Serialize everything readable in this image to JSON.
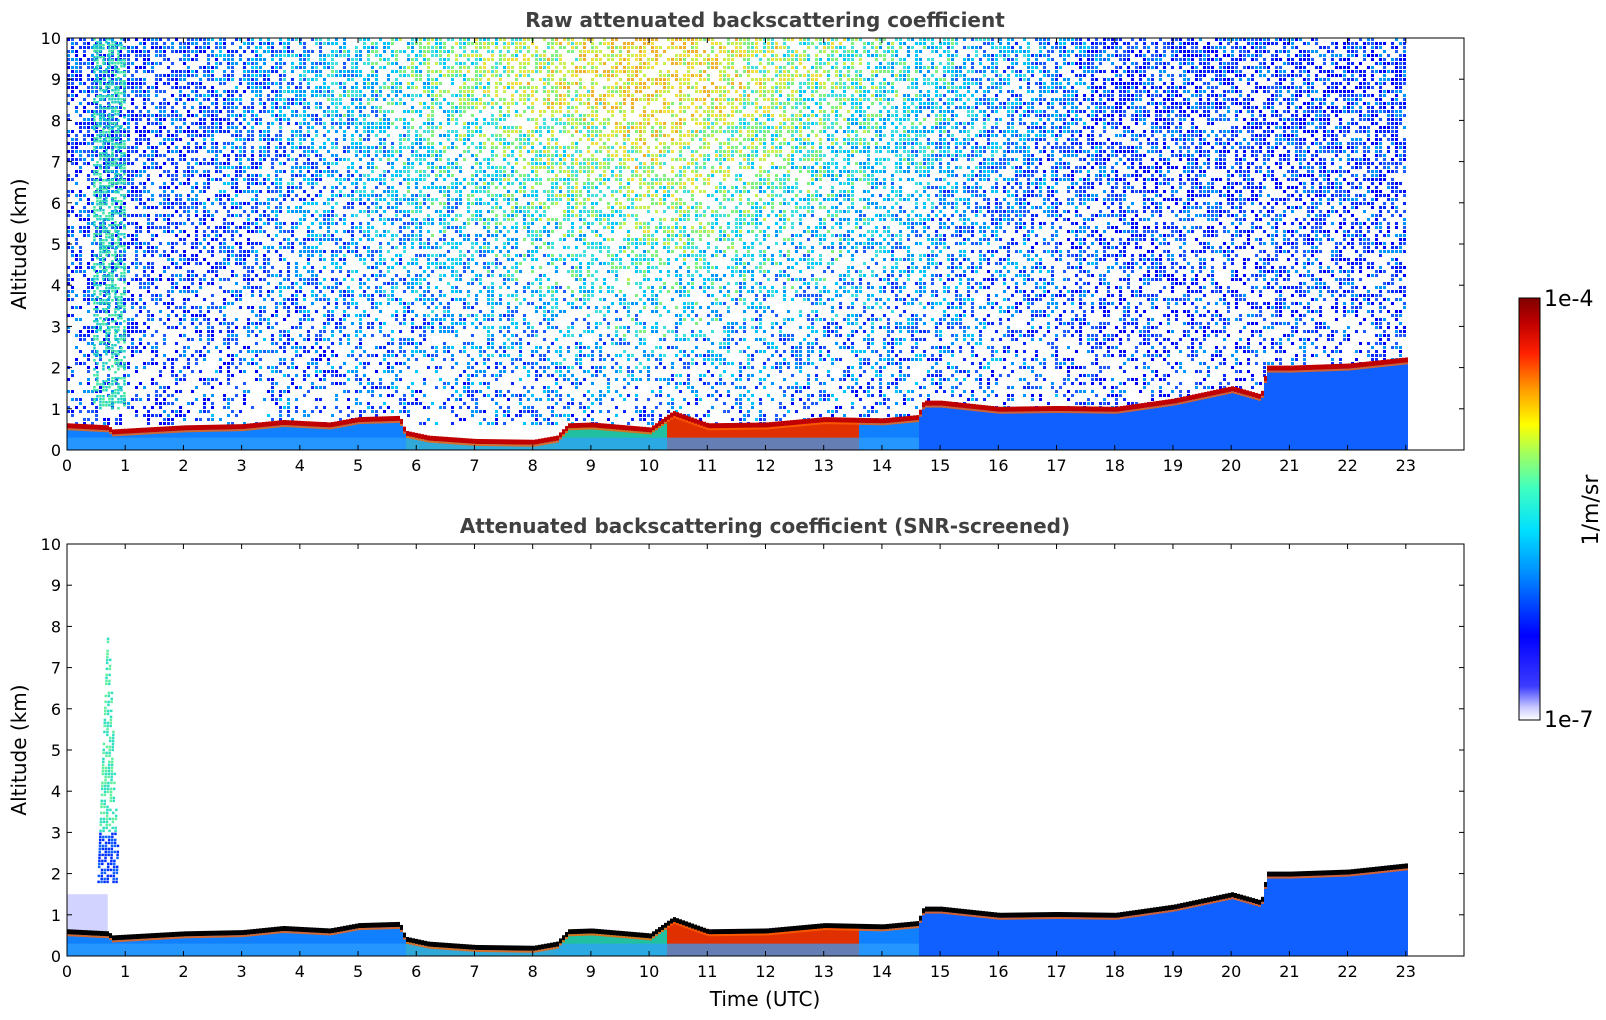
{
  "chart_data": [
    {
      "type": "heatmap",
      "title": "Raw attenuated backscattering coefficient",
      "xlabel": "",
      "ylabel": "Altitude (km)",
      "xlim": [
        0,
        24
      ],
      "ylim": [
        0,
        10
      ],
      "x_ticks": [
        0,
        1,
        2,
        3,
        4,
        5,
        6,
        7,
        8,
        9,
        10,
        11,
        12,
        13,
        14,
        15,
        16,
        17,
        18,
        19,
        20,
        21,
        22,
        23
      ],
      "y_ticks": [
        0,
        1,
        2,
        3,
        4,
        5,
        6,
        7,
        8,
        9,
        10
      ],
      "data_end_hour": 23,
      "layer_top_km": [
        [
          0,
          0.6
        ],
        [
          0.7,
          0.55
        ],
        [
          0.75,
          0.45
        ],
        [
          2,
          0.55
        ],
        [
          3,
          0.58
        ],
        [
          3.7,
          0.68
        ],
        [
          4.5,
          0.62
        ],
        [
          5,
          0.75
        ],
        [
          5.7,
          0.78
        ],
        [
          5.8,
          0.42
        ],
        [
          6.2,
          0.3
        ],
        [
          7,
          0.22
        ],
        [
          8,
          0.2
        ],
        [
          8.4,
          0.3
        ],
        [
          8.6,
          0.6
        ],
        [
          9,
          0.62
        ],
        [
          10,
          0.5
        ],
        [
          10.4,
          0.9
        ],
        [
          11,
          0.6
        ],
        [
          12,
          0.62
        ],
        [
          13,
          0.75
        ],
        [
          14,
          0.72
        ],
        [
          14.6,
          0.8
        ],
        [
          14.7,
          1.15
        ],
        [
          15,
          1.15
        ],
        [
          16,
          1.0
        ],
        [
          17,
          1.02
        ],
        [
          18,
          1.0
        ],
        [
          19,
          1.2
        ],
        [
          20,
          1.5
        ],
        [
          20.5,
          1.3
        ],
        [
          20.6,
          2.0
        ],
        [
          21,
          2.0
        ],
        [
          22,
          2.05
        ],
        [
          23,
          2.2
        ]
      ],
      "noise_level": "high"
    },
    {
      "type": "heatmap",
      "title": "Attenuated backscattering coefficient (SNR-screened)",
      "xlabel": "Time (UTC)",
      "ylabel": "Altitude (km)",
      "xlim": [
        0,
        24
      ],
      "ylim": [
        0,
        10
      ],
      "x_ticks": [
        0,
        1,
        2,
        3,
        4,
        5,
        6,
        7,
        8,
        9,
        10,
        11,
        12,
        13,
        14,
        15,
        16,
        17,
        18,
        19,
        20,
        21,
        22,
        23
      ],
      "y_ticks": [
        0,
        1,
        2,
        3,
        4,
        5,
        6,
        7,
        8,
        9,
        10
      ],
      "data_end_hour": 23,
      "layer_top_km": [
        [
          0,
          0.6
        ],
        [
          0.7,
          0.55
        ],
        [
          0.75,
          0.45
        ],
        [
          2,
          0.55
        ],
        [
          3,
          0.58
        ],
        [
          3.7,
          0.68
        ],
        [
          4.5,
          0.62
        ],
        [
          5,
          0.75
        ],
        [
          5.7,
          0.78
        ],
        [
          5.8,
          0.42
        ],
        [
          6.2,
          0.3
        ],
        [
          7,
          0.22
        ],
        [
          8,
          0.2
        ],
        [
          8.4,
          0.3
        ],
        [
          8.6,
          0.6
        ],
        [
          9,
          0.62
        ],
        [
          10,
          0.5
        ],
        [
          10.4,
          0.9
        ],
        [
          11,
          0.6
        ],
        [
          12,
          0.62
        ],
        [
          13,
          0.75
        ],
        [
          14,
          0.72
        ],
        [
          14.6,
          0.8
        ],
        [
          14.7,
          1.15
        ],
        [
          15,
          1.15
        ],
        [
          16,
          1.0
        ],
        [
          17,
          1.02
        ],
        [
          18,
          1.0
        ],
        [
          19,
          1.2
        ],
        [
          20,
          1.5
        ],
        [
          20.5,
          1.3
        ],
        [
          20.6,
          2.0
        ],
        [
          21,
          2.0
        ],
        [
          22,
          2.05
        ],
        [
          23,
          2.2
        ]
      ],
      "noise_level": "screened"
    }
  ],
  "colorbar": {
    "max_label": "1e-4",
    "min_label": "1e-7",
    "units_label": "1/m/sr",
    "colors": [
      "#ffffff",
      "#0000ff",
      "#00a0ff",
      "#00ffff",
      "#80ff80",
      "#ffff00",
      "#ff8000",
      "#ff0000",
      "#800000"
    ]
  }
}
